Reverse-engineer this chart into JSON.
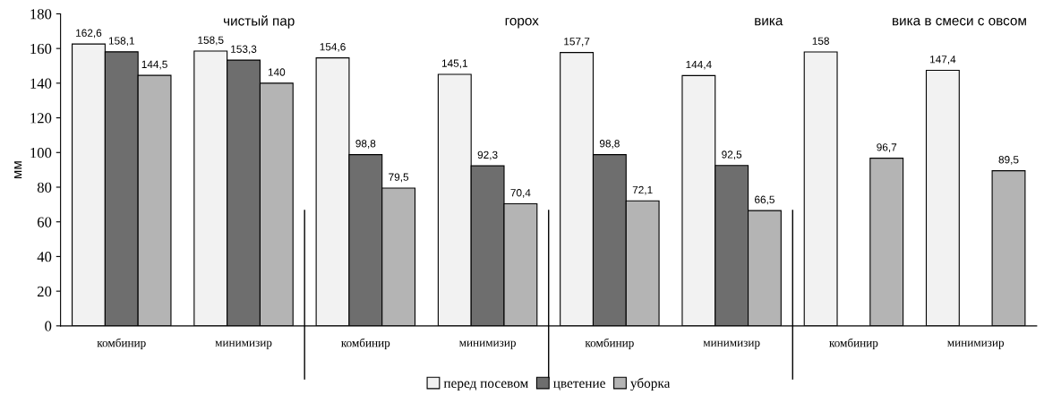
{
  "chart_data": {
    "type": "bar",
    "ylabel": "мм",
    "categories": [
      "комбинир",
      "минимизир",
      "комбинир",
      "минимизир",
      "комбинир",
      "минимизир",
      "комбинир",
      "минимизир"
    ],
    "series": [
      {
        "name": "перед посевом",
        "color": "#f2f2f2",
        "values": [
          162.6,
          158.5,
          154.6,
          145.1,
          157.7,
          144.4,
          158,
          147.4
        ],
        "value_labels": [
          "162,6",
          "158,5",
          "154,6",
          "145,1",
          "157,7",
          "144,4",
          "158",
          "147,4"
        ]
      },
      {
        "name": "цветение",
        "color": "#6e6e6e",
        "values": [
          158.1,
          153.3,
          98.8,
          92.3,
          98.8,
          92.5,
          null,
          null
        ],
        "value_labels": [
          "158,1",
          "153,3",
          "98,8",
          "92,3",
          "98,8",
          "92,5",
          null,
          null
        ]
      },
      {
        "name": "уборка",
        "color": "#b4b4b4",
        "values": [
          144.5,
          140,
          79.5,
          70.4,
          72.1,
          66.5,
          96.7,
          89.5
        ],
        "value_labels": [
          "144,5",
          "140",
          "79,5",
          "70,4",
          "72,1",
          "66,5",
          "96,7",
          "89,5"
        ]
      }
    ],
    "annotations": [
      "чистый пар",
      "горох",
      "вика",
      "вика в смеси с овсом"
    ],
    "ylim": [
      0,
      180
    ],
    "yticks": [
      0,
      20,
      40,
      60,
      80,
      100,
      120,
      140,
      160,
      180
    ],
    "grid": false,
    "legend": "bottom"
  }
}
